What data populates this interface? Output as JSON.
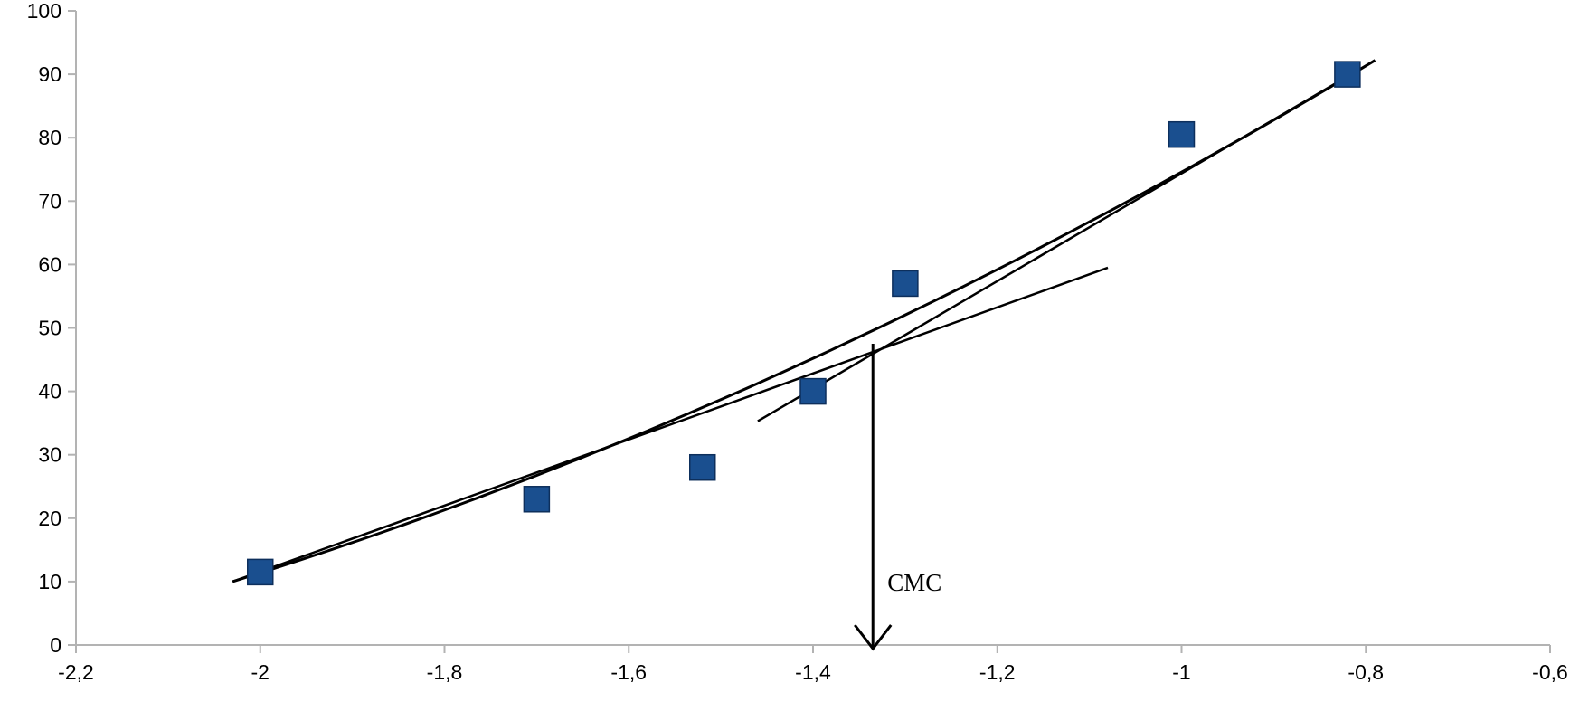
{
  "chart_data": {
    "type": "scatter",
    "x_ticks": [
      "-2,2",
      "-2",
      "-1,8",
      "-1,6",
      "-1,4",
      "-1,2",
      "-1",
      "-0,8",
      "-0,6"
    ],
    "y_ticks": [
      "0",
      "10",
      "20",
      "30",
      "40",
      "50",
      "60",
      "70",
      "80",
      "90",
      "100"
    ],
    "xlim": [
      -2.2,
      -0.6
    ],
    "ylim": [
      0,
      100
    ],
    "grid": false,
    "series": [
      {
        "marker": "square",
        "color": "#1a4f8f",
        "points": [
          {
            "x": -2.0,
            "y": 11.5
          },
          {
            "x": -1.7,
            "y": 23
          },
          {
            "x": -1.52,
            "y": 28
          },
          {
            "x": -1.4,
            "y": 40
          },
          {
            "x": -1.3,
            "y": 57
          },
          {
            "x": -1.0,
            "y": 80.5
          },
          {
            "x": -0.82,
            "y": 90
          }
        ]
      }
    ],
    "fit_curve": {
      "color": "#000000",
      "x_range": [
        -2.03,
        -0.79
      ],
      "a": 74.4,
      "b": 2.0,
      "c": 0.33,
      "form": "y = a*exp(b*(x+1)) + c*(x+1)... approximated"
    },
    "tangent_lines": [
      {
        "from": {
          "x": -2.03,
          "y": 10
        },
        "to": {
          "x": -1.08,
          "y": 59.5
        }
      },
      {
        "from": {
          "x": -1.46,
          "y": 35.3
        },
        "to": {
          "x": -0.79,
          "y": 92.2
        }
      }
    ],
    "annotations": [
      {
        "text": "CMC",
        "arrow_x": -1.335,
        "arrow_from_y": 47.5,
        "arrow_to_y": 0
      }
    ]
  },
  "colors": {
    "axis": "#b3b3b3",
    "marker_fill": "#1a4f8f",
    "marker_stroke": "#0d2f5c",
    "line": "#000000"
  }
}
